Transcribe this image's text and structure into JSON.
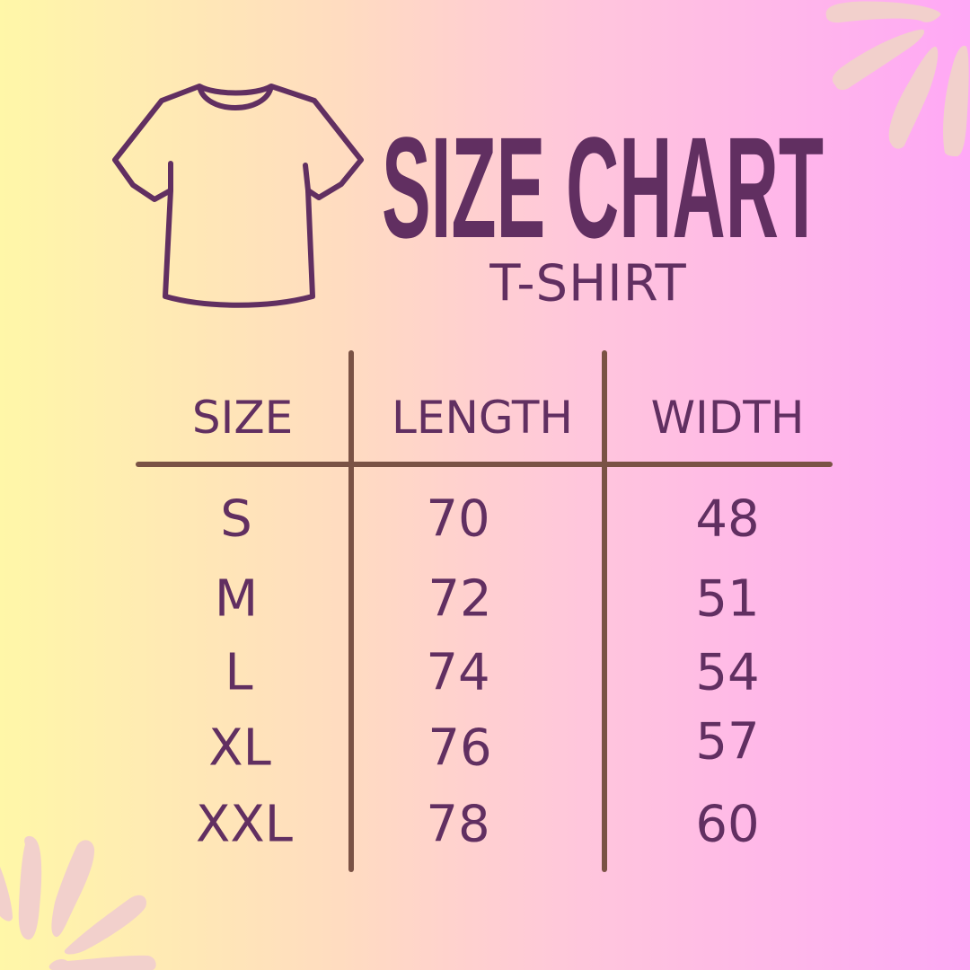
{
  "title": "SIZE CHART",
  "subtitle": "T-SHIRT",
  "colors": {
    "text": "#612f61",
    "lines": "#7a5245",
    "decor": "#f2d0cc",
    "bg_left": "#fff7a8",
    "bg_right": "#ffa8f6"
  },
  "icons": {
    "shirt": "t-shirt-outline-icon",
    "decor": "brush-burst-decoration"
  },
  "table": {
    "headers": [
      "SIZE",
      "LENGTH",
      "WIDTH"
    ],
    "rows": [
      [
        "S",
        "70",
        "48"
      ],
      [
        "M",
        "72",
        "51"
      ],
      [
        "L",
        "74",
        "54"
      ],
      [
        "XL",
        "76",
        "57"
      ],
      [
        "XXL",
        "78",
        "60"
      ]
    ]
  }
}
